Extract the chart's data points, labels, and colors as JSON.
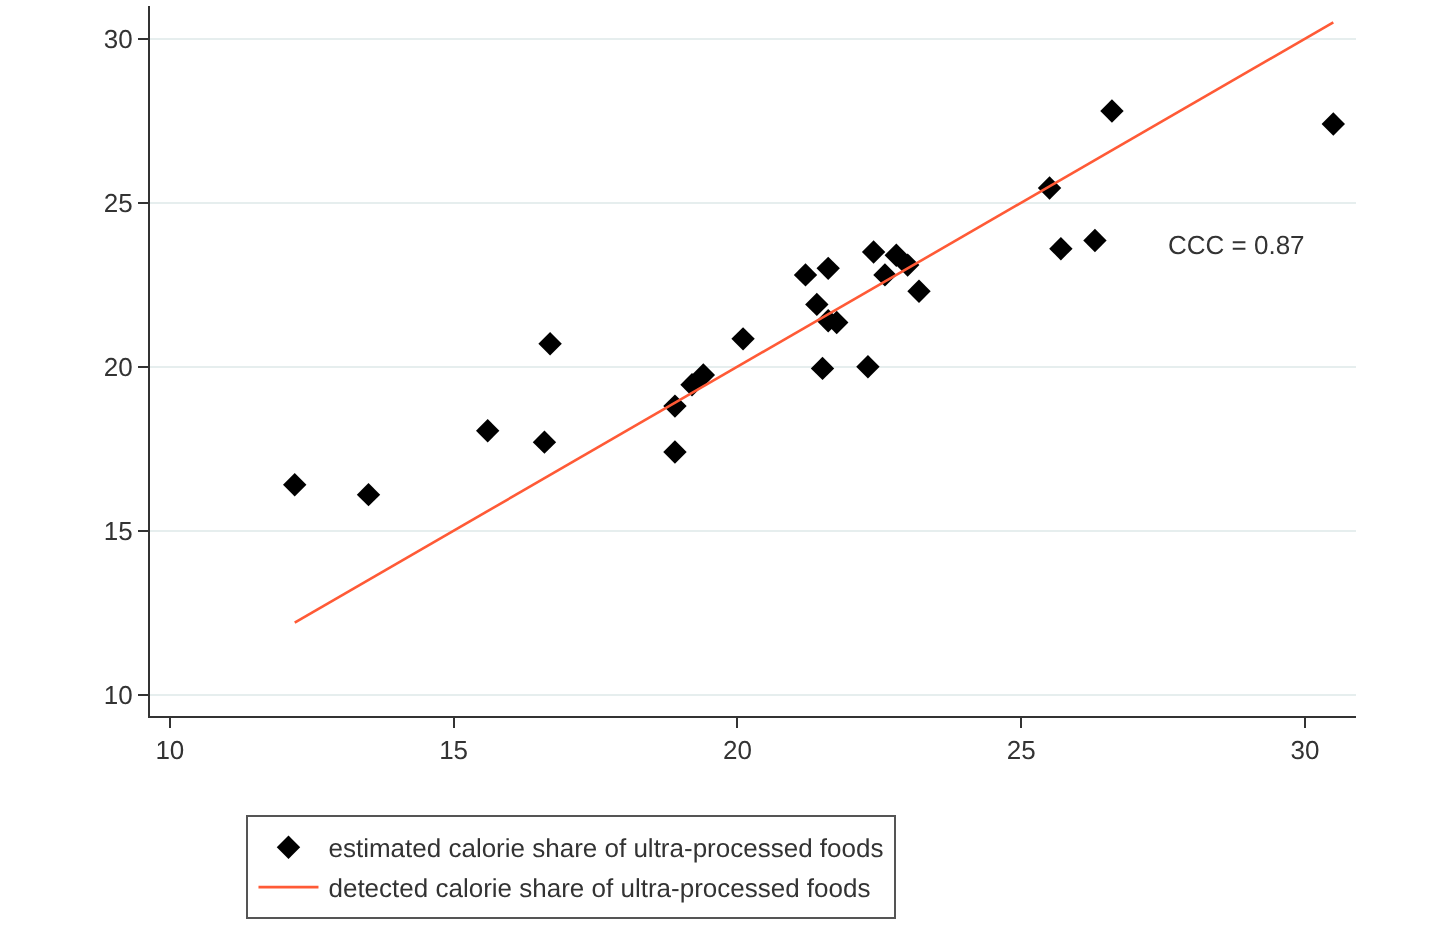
{
  "chart_data": {
    "type": "scatter",
    "xlim": [
      9.65,
      30.9
    ],
    "xticks": [
      10,
      15,
      20,
      25,
      30
    ],
    "ylim": [
      9.35,
      31
    ],
    "yticks": [
      10,
      15,
      20,
      25,
      30
    ],
    "grid": "y",
    "legend": "bottom",
    "annotations": [
      "CCC = 0.87"
    ],
    "series": [
      {
        "name": "estimated calorie share of ultra-processed foods",
        "color": "#000000",
        "marker": "diamond",
        "x": [
          12.2,
          13.5,
          15.6,
          16.6,
          16.7,
          18.9,
          18.9,
          19.2,
          19.4,
          20.1,
          21.2,
          21.4,
          21.5,
          21.6,
          21.6,
          21.75,
          22.3,
          22.4,
          22.6,
          22.8,
          23.0,
          23.2,
          25.5,
          25.7,
          26.3,
          26.6,
          30.5
        ],
        "values": [
          16.4,
          16.1,
          18.05,
          17.7,
          20.7,
          17.4,
          18.8,
          19.45,
          19.75,
          20.85,
          22.8,
          21.9,
          19.95,
          23.0,
          21.4,
          21.35,
          20.0,
          23.5,
          22.8,
          23.4,
          23.1,
          22.3,
          25.45,
          23.6,
          23.85,
          27.8,
          27.4
        ]
      },
      {
        "name": "detected calorie share of ultra-processed foods",
        "type": "line",
        "color": "#ff5a36",
        "line_style": "solid",
        "x": [
          12.2,
          30.5
        ],
        "values": [
          12.2,
          30.5
        ]
      }
    ]
  }
}
